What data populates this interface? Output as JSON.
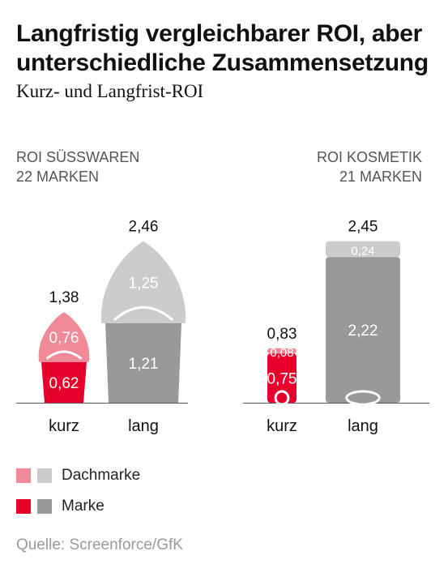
{
  "title": "Langfristig vergleichbarer ROI, aber unterschiedliche Zusammensetzung",
  "subtitle": "Kurz- und Langfrist-ROI",
  "groups": {
    "left": {
      "line1": "ROI SÜSSWAREN",
      "line2": "22 MARKEN"
    },
    "right": {
      "line1": "ROI KOSMETIK",
      "line2": "21 MARKEN"
    }
  },
  "legend": {
    "dachmarke": "Dachmarke",
    "marke": "Marke"
  },
  "source": "Quelle: Screenforce/GfK",
  "colors": {
    "kurz_marke": "#e8002d",
    "kurz_dachmarke": "#f08a96",
    "lang_marke": "#999999",
    "lang_dachmarke": "#cccccc"
  },
  "chart_data": {
    "type": "bar",
    "stacked": true,
    "categories": [
      "kurz",
      "lang"
    ],
    "groups": [
      {
        "name": "ROI SÜSSWAREN 22 MARKEN",
        "items": [
          {
            "category": "kurz",
            "marke": 0.62,
            "dachmarke": 0.76,
            "total": 1.38,
            "label_marke": "0,62",
            "label_dachmarke": "0,76",
            "label_total": "1,38"
          },
          {
            "category": "lang",
            "marke": 1.21,
            "dachmarke": 1.25,
            "total": 2.46,
            "label_marke": "1,21",
            "label_dachmarke": "1,25",
            "label_total": "2,46"
          }
        ]
      },
      {
        "name": "ROI KOSMETIK 21 MARKEN",
        "items": [
          {
            "category": "kurz",
            "marke": 0.75,
            "dachmarke": 0.08,
            "total": 0.83,
            "label_marke": "0,75",
            "label_dachmarke": "0,08",
            "label_total": "0,83"
          },
          {
            "category": "lang",
            "marke": 2.22,
            "dachmarke": 0.24,
            "total": 2.45,
            "label_marke": "2,22",
            "label_dachmarke": "0,24",
            "label_total": "2,45"
          }
        ]
      }
    ],
    "series": [
      {
        "name": "Dachmarke"
      },
      {
        "name": "Marke"
      }
    ]
  }
}
